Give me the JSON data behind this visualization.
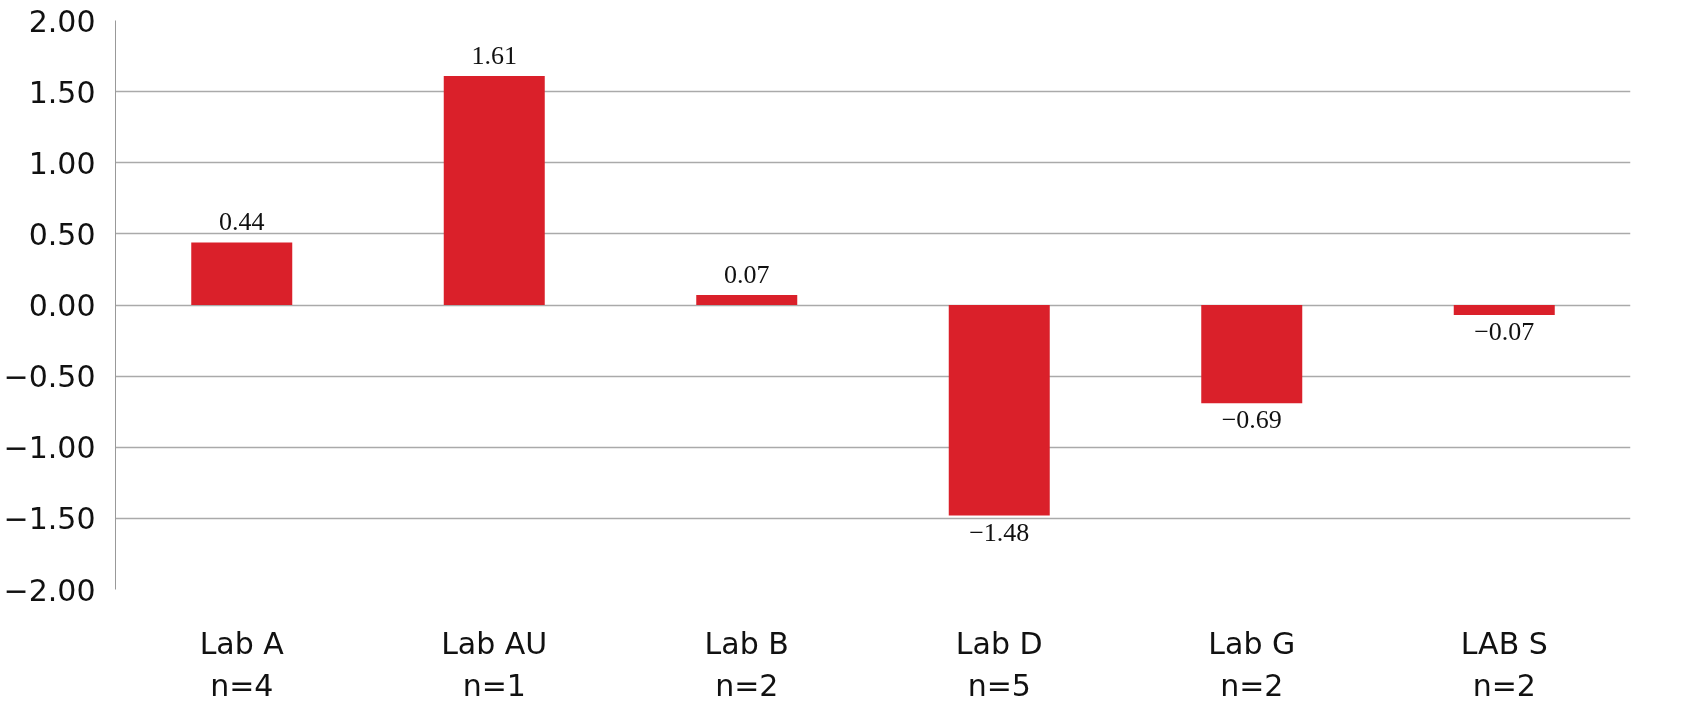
{
  "chart_data": {
    "type": "bar",
    "categories": [
      "Lab A\nn=4",
      "Lab AU\nn=1",
      "Lab B\nn=2",
      "Lab D\nn=5",
      "Lab G\nn=2",
      "LAB S\nn=2"
    ],
    "values": [
      0.44,
      1.61,
      0.07,
      -1.48,
      -0.69,
      -0.07
    ],
    "value_labels": [
      "0.44",
      "1.61",
      "0.07",
      "−1.48",
      "−0.69",
      "−0.07"
    ],
    "color": "#da202a",
    "ylim": [
      -2,
      2
    ],
    "yticks": [
      {
        "value": -2,
        "label": "−2.00"
      },
      {
        "value": -1.5,
        "label": "−1.50"
      },
      {
        "value": -1,
        "label": "−1.00"
      },
      {
        "value": -0.5,
        "label": "−0.50"
      },
      {
        "value": 0,
        "label": "0.00"
      },
      {
        "value": 0.5,
        "label": "0.50"
      },
      {
        "value": 1,
        "label": "1.00"
      },
      {
        "value": 1.5,
        "label": "1.50"
      },
      {
        "value": 2,
        "label": "2.00"
      }
    ],
    "grid": "y"
  }
}
